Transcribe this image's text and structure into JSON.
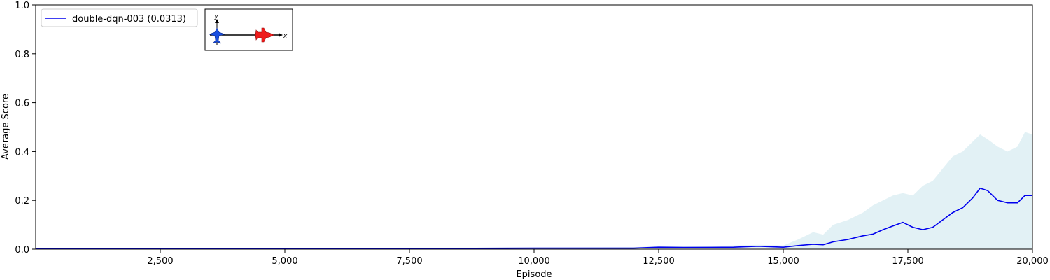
{
  "chart_data": {
    "type": "line",
    "xlabel": "Episode",
    "ylabel": "Average Score",
    "xlim": [
      0,
      20000
    ],
    "ylim": [
      0,
      1.0
    ],
    "x_ticks": [
      2500,
      5000,
      7500,
      10000,
      12500,
      15000,
      17500,
      20000
    ],
    "x_tick_labels": [
      "2,500",
      "5,000",
      "7,500",
      "10,000",
      "12,500",
      "15,000",
      "17,500",
      "20,000"
    ],
    "y_ticks": [
      0.0,
      0.2,
      0.4,
      0.6,
      0.8,
      1.0
    ],
    "y_tick_labels": [
      "0.0",
      "0.2",
      "0.4",
      "0.6",
      "0.8",
      "1.0"
    ],
    "grid": false,
    "legend_position": "top-left",
    "series": [
      {
        "name": "double-dqn-003 (0.0313)",
        "color": "#0000ee",
        "band_color": "#e2f1f5",
        "x": [
          0,
          2500,
          5000,
          7500,
          10000,
          12000,
          12500,
          13000,
          14000,
          14500,
          15000,
          15300,
          15600,
          15800,
          16000,
          16300,
          16600,
          16800,
          17000,
          17200,
          17400,
          17600,
          17800,
          18000,
          18200,
          18400,
          18600,
          18800,
          18950,
          19100,
          19300,
          19500,
          19700,
          19850,
          20000
        ],
        "y": [
          0.002,
          0.002,
          0.002,
          0.003,
          0.004,
          0.004,
          0.008,
          0.007,
          0.008,
          0.012,
          0.008,
          0.015,
          0.02,
          0.018,
          0.03,
          0.04,
          0.055,
          0.062,
          0.08,
          0.095,
          0.11,
          0.09,
          0.08,
          0.09,
          0.12,
          0.15,
          0.17,
          0.21,
          0.25,
          0.24,
          0.2,
          0.19,
          0.19,
          0.22,
          0.22
        ],
        "upper": [
          0.004,
          0.004,
          0.004,
          0.006,
          0.007,
          0.008,
          0.012,
          0.012,
          0.015,
          0.018,
          0.015,
          0.04,
          0.07,
          0.06,
          0.1,
          0.12,
          0.15,
          0.18,
          0.2,
          0.22,
          0.23,
          0.22,
          0.26,
          0.28,
          0.33,
          0.38,
          0.4,
          0.44,
          0.47,
          0.45,
          0.42,
          0.4,
          0.42,
          0.48,
          0.47
        ],
        "lower": [
          0.0,
          0.0,
          0.0,
          0.0,
          0.0,
          0.0,
          0.002,
          0.002,
          0.002,
          0.004,
          0.002,
          0.0,
          0.0,
          0.0,
          0.0,
          0.0,
          0.0,
          0.0,
          0.0,
          0.0,
          0.0,
          0.0,
          0.0,
          0.0,
          0.0,
          0.0,
          0.0,
          0.0,
          0.0,
          0.0,
          0.0,
          0.0,
          0.0,
          0.0,
          0.0
        ]
      }
    ],
    "inset_axis_labels": {
      "x": "x",
      "y": "y"
    }
  }
}
